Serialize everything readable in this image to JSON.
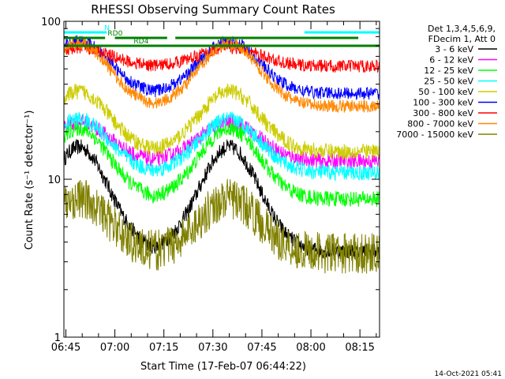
{
  "chart_data": {
    "type": "line",
    "title": "RHESSI Observing Summary Count Rates",
    "xlabel": "Start Time (17-Feb-07 06:44:22)",
    "ylabel": "Count Rate (s⁻¹ detector⁻¹)",
    "yscale": "log",
    "ylim": [
      1,
      100
    ],
    "y_ticks": [
      {
        "v": 1,
        "label": "1"
      },
      {
        "v": 10,
        "label": "10"
      },
      {
        "v": 100,
        "label": "100"
      }
    ],
    "xlim": [
      44.4,
      141
    ],
    "x_ticks": [
      {
        "v": 45,
        "label": "06:45"
      },
      {
        "v": 60,
        "label": "07:00"
      },
      {
        "v": 75,
        "label": "07:15"
      },
      {
        "v": 90,
        "label": "07:30"
      },
      {
        "v": 105,
        "label": "07:45"
      },
      {
        "v": 120,
        "label": "08:00"
      },
      {
        "v": 135,
        "label": "08:15"
      }
    ],
    "legend_header": [
      "Det 1,3,4,5,6,9,",
      "FDecim 1, Att 0"
    ],
    "series": [
      {
        "name": "3 - 6 keV",
        "color": "#000000",
        "night": 3.5,
        "day": 16,
        "noise": 0.05
      },
      {
        "name": "6 - 12 keV",
        "color": "#ff00ff",
        "night": 13,
        "day": 23,
        "noise": 0.05
      },
      {
        "name": "12 - 25 keV",
        "color": "#00ff00",
        "night": 7.5,
        "day": 21,
        "noise": 0.05
      },
      {
        "name": "25 - 50 keV",
        "color": "#00ffff",
        "night": 11,
        "day": 24,
        "noise": 0.05
      },
      {
        "name": "50 - 100 keV",
        "color": "#cccc00",
        "night": 15,
        "day": 36,
        "noise": 0.05
      },
      {
        "name": "100 - 300 keV",
        "color": "#0000ff",
        "night": 35,
        "day": 75,
        "noise": 0.04
      },
      {
        "name": "300 - 800 keV",
        "color": "#ff0000",
        "night": 52,
        "day": 68,
        "noise": 0.04
      },
      {
        "name": "800 - 7000 keV",
        "color": "#ff8800",
        "night": 29,
        "day": 73,
        "noise": 0.04
      },
      {
        "name": "7000 - 15000 keV",
        "color": "#808000",
        "night": 3.4,
        "day": 7.5,
        "noise": 0.13
      }
    ],
    "day_peaks": [
      49,
      95
    ],
    "flags": [
      {
        "name": "N",
        "color": "#00ffff",
        "segments": [
          [
            44.5,
            57.5
          ],
          [
            118,
            141
          ]
        ]
      },
      {
        "name": "RD0",
        "color": "#008000",
        "segments": [
          [
            44.5,
            57
          ],
          [
            60,
            76
          ],
          [
            78.5,
            134.5
          ]
        ]
      },
      {
        "name": "RD4",
        "color": "#008000",
        "segments": [
          [
            44.5,
            141
          ]
        ]
      }
    ],
    "footer_date": "14-Oct-2021 05:41"
  }
}
